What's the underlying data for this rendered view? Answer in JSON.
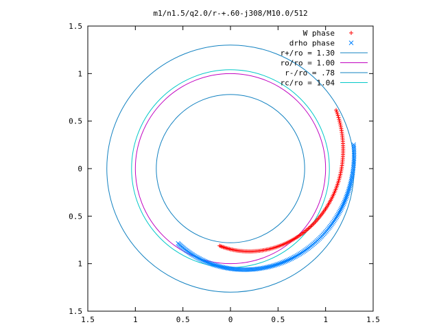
{
  "chart_data": {
    "type": "scatter",
    "title": "m1/n1.5/q2.0/r-+.60-j308/M10.0/512",
    "xlim": [
      -1.5,
      1.5
    ],
    "ylim": [
      -1.5,
      1.5
    ],
    "x_ticks": [
      -1.5,
      -1,
      -0.5,
      0,
      0.5,
      1,
      1.5
    ],
    "y_ticks": [
      -1.5,
      -1,
      -0.5,
      0,
      0.5,
      1,
      1.5
    ],
    "x_tick_labels": [
      "1.5",
      "1",
      "0.5",
      "0",
      "0.5",
      "1",
      "1.5"
    ],
    "y_tick_labels": [
      "1.5",
      "1",
      "0.5",
      "0",
      "0.5",
      "1",
      "1.5"
    ],
    "grid": false,
    "legend_position": "top-right",
    "series": [
      {
        "name": "W phase",
        "kind": "points",
        "marker": "plus",
        "color": "#ff0000",
        "arc": {
          "radius_start": 0.82,
          "radius_end": 1.27,
          "angle_start_deg": -98,
          "angle_end_deg": 29,
          "point_count": 140
        }
      },
      {
        "name": "drho phase",
        "kind": "points",
        "marker": "cross",
        "color": "#0080ff",
        "arc": {
          "radius_start": 0.96,
          "radius_end": 1.32,
          "angle_start_deg": -125,
          "angle_end_deg": 11,
          "point_count": 170
        }
      },
      {
        "name": "r+/ro = 1.30",
        "kind": "circle",
        "radius": 1.3,
        "color": "#1080c0"
      },
      {
        "name": "ro/ro = 1.00",
        "kind": "circle",
        "radius": 1.0,
        "color": "#c000c0"
      },
      {
        "name": "r-/ro = .78",
        "kind": "circle",
        "radius": 0.78,
        "color": "#1080c0"
      },
      {
        "name": "rc/ro = 1.04",
        "kind": "circle",
        "radius": 1.04,
        "color": "#00c8c8"
      }
    ]
  }
}
